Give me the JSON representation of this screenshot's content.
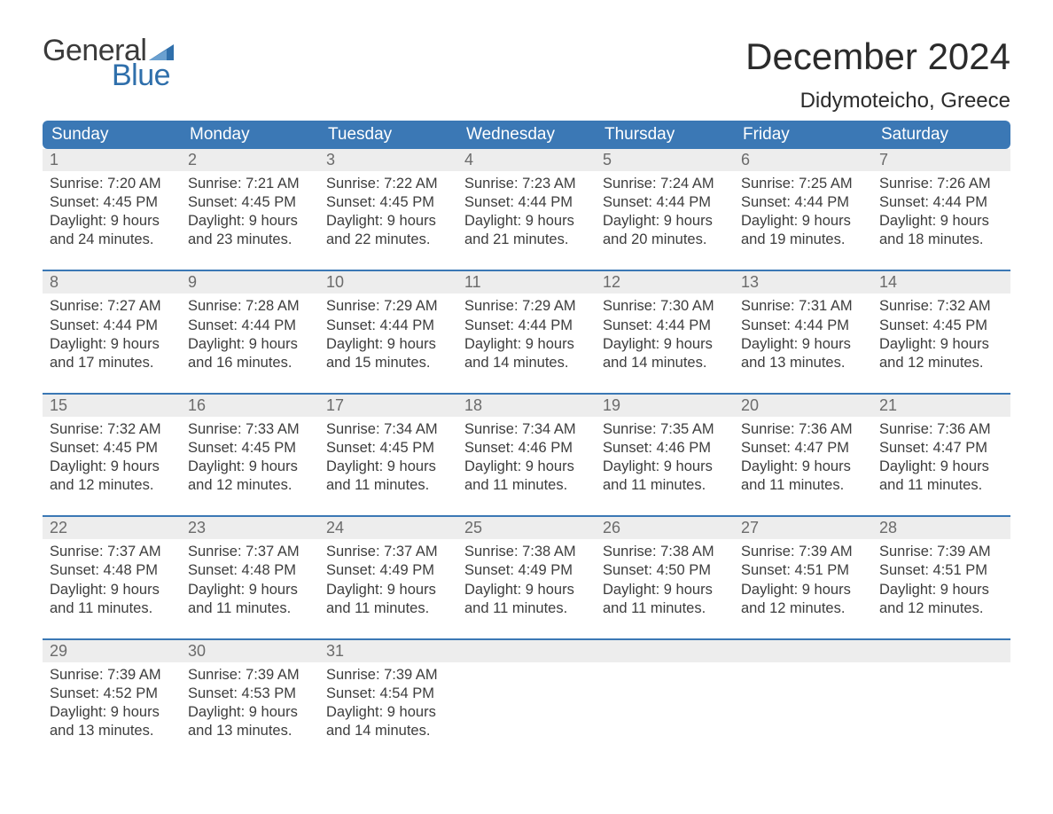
{
  "brand": {
    "word1": "General",
    "word2": "Blue",
    "text_color": "#3a3a3a",
    "accent_color": "#2f6fab"
  },
  "title": "December 2024",
  "location": "Didymoteicho, Greece",
  "colors": {
    "header_bg": "#3b78b5",
    "header_text": "#ffffff",
    "daynum_bg": "#ededed",
    "daynum_text": "#6b6b6b",
    "body_text": "#3d3d3d",
    "week_separator": "#3b78b5",
    "page_bg": "#ffffff"
  },
  "typography": {
    "title_fontsize": 42,
    "location_fontsize": 24,
    "header_fontsize": 19,
    "daynum_fontsize": 18,
    "cell_fontsize": 16.5,
    "font_family": "Arial"
  },
  "day_headers": [
    "Sunday",
    "Monday",
    "Tuesday",
    "Wednesday",
    "Thursday",
    "Friday",
    "Saturday"
  ],
  "weeks": [
    [
      {
        "n": "1",
        "l1": "Sunrise: 7:20 AM",
        "l2": "Sunset: 4:45 PM",
        "l3": "Daylight: 9 hours",
        "l4": "and 24 minutes."
      },
      {
        "n": "2",
        "l1": "Sunrise: 7:21 AM",
        "l2": "Sunset: 4:45 PM",
        "l3": "Daylight: 9 hours",
        "l4": "and 23 minutes."
      },
      {
        "n": "3",
        "l1": "Sunrise: 7:22 AM",
        "l2": "Sunset: 4:45 PM",
        "l3": "Daylight: 9 hours",
        "l4": "and 22 minutes."
      },
      {
        "n": "4",
        "l1": "Sunrise: 7:23 AM",
        "l2": "Sunset: 4:44 PM",
        "l3": "Daylight: 9 hours",
        "l4": "and 21 minutes."
      },
      {
        "n": "5",
        "l1": "Sunrise: 7:24 AM",
        "l2": "Sunset: 4:44 PM",
        "l3": "Daylight: 9 hours",
        "l4": "and 20 minutes."
      },
      {
        "n": "6",
        "l1": "Sunrise: 7:25 AM",
        "l2": "Sunset: 4:44 PM",
        "l3": "Daylight: 9 hours",
        "l4": "and 19 minutes."
      },
      {
        "n": "7",
        "l1": "Sunrise: 7:26 AM",
        "l2": "Sunset: 4:44 PM",
        "l3": "Daylight: 9 hours",
        "l4": "and 18 minutes."
      }
    ],
    [
      {
        "n": "8",
        "l1": "Sunrise: 7:27 AM",
        "l2": "Sunset: 4:44 PM",
        "l3": "Daylight: 9 hours",
        "l4": "and 17 minutes."
      },
      {
        "n": "9",
        "l1": "Sunrise: 7:28 AM",
        "l2": "Sunset: 4:44 PM",
        "l3": "Daylight: 9 hours",
        "l4": "and 16 minutes."
      },
      {
        "n": "10",
        "l1": "Sunrise: 7:29 AM",
        "l2": "Sunset: 4:44 PM",
        "l3": "Daylight: 9 hours",
        "l4": "and 15 minutes."
      },
      {
        "n": "11",
        "l1": "Sunrise: 7:29 AM",
        "l2": "Sunset: 4:44 PM",
        "l3": "Daylight: 9 hours",
        "l4": "and 14 minutes."
      },
      {
        "n": "12",
        "l1": "Sunrise: 7:30 AM",
        "l2": "Sunset: 4:44 PM",
        "l3": "Daylight: 9 hours",
        "l4": "and 14 minutes."
      },
      {
        "n": "13",
        "l1": "Sunrise: 7:31 AM",
        "l2": "Sunset: 4:44 PM",
        "l3": "Daylight: 9 hours",
        "l4": "and 13 minutes."
      },
      {
        "n": "14",
        "l1": "Sunrise: 7:32 AM",
        "l2": "Sunset: 4:45 PM",
        "l3": "Daylight: 9 hours",
        "l4": "and 12 minutes."
      }
    ],
    [
      {
        "n": "15",
        "l1": "Sunrise: 7:32 AM",
        "l2": "Sunset: 4:45 PM",
        "l3": "Daylight: 9 hours",
        "l4": "and 12 minutes."
      },
      {
        "n": "16",
        "l1": "Sunrise: 7:33 AM",
        "l2": "Sunset: 4:45 PM",
        "l3": "Daylight: 9 hours",
        "l4": "and 12 minutes."
      },
      {
        "n": "17",
        "l1": "Sunrise: 7:34 AM",
        "l2": "Sunset: 4:45 PM",
        "l3": "Daylight: 9 hours",
        "l4": "and 11 minutes."
      },
      {
        "n": "18",
        "l1": "Sunrise: 7:34 AM",
        "l2": "Sunset: 4:46 PM",
        "l3": "Daylight: 9 hours",
        "l4": "and 11 minutes."
      },
      {
        "n": "19",
        "l1": "Sunrise: 7:35 AM",
        "l2": "Sunset: 4:46 PM",
        "l3": "Daylight: 9 hours",
        "l4": "and 11 minutes."
      },
      {
        "n": "20",
        "l1": "Sunrise: 7:36 AM",
        "l2": "Sunset: 4:47 PM",
        "l3": "Daylight: 9 hours",
        "l4": "and 11 minutes."
      },
      {
        "n": "21",
        "l1": "Sunrise: 7:36 AM",
        "l2": "Sunset: 4:47 PM",
        "l3": "Daylight: 9 hours",
        "l4": "and 11 minutes."
      }
    ],
    [
      {
        "n": "22",
        "l1": "Sunrise: 7:37 AM",
        "l2": "Sunset: 4:48 PM",
        "l3": "Daylight: 9 hours",
        "l4": "and 11 minutes."
      },
      {
        "n": "23",
        "l1": "Sunrise: 7:37 AM",
        "l2": "Sunset: 4:48 PM",
        "l3": "Daylight: 9 hours",
        "l4": "and 11 minutes."
      },
      {
        "n": "24",
        "l1": "Sunrise: 7:37 AM",
        "l2": "Sunset: 4:49 PM",
        "l3": "Daylight: 9 hours",
        "l4": "and 11 minutes."
      },
      {
        "n": "25",
        "l1": "Sunrise: 7:38 AM",
        "l2": "Sunset: 4:49 PM",
        "l3": "Daylight: 9 hours",
        "l4": "and 11 minutes."
      },
      {
        "n": "26",
        "l1": "Sunrise: 7:38 AM",
        "l2": "Sunset: 4:50 PM",
        "l3": "Daylight: 9 hours",
        "l4": "and 11 minutes."
      },
      {
        "n": "27",
        "l1": "Sunrise: 7:39 AM",
        "l2": "Sunset: 4:51 PM",
        "l3": "Daylight: 9 hours",
        "l4": "and 12 minutes."
      },
      {
        "n": "28",
        "l1": "Sunrise: 7:39 AM",
        "l2": "Sunset: 4:51 PM",
        "l3": "Daylight: 9 hours",
        "l4": "and 12 minutes."
      }
    ],
    [
      {
        "n": "29",
        "l1": "Sunrise: 7:39 AM",
        "l2": "Sunset: 4:52 PM",
        "l3": "Daylight: 9 hours",
        "l4": "and 13 minutes."
      },
      {
        "n": "30",
        "l1": "Sunrise: 7:39 AM",
        "l2": "Sunset: 4:53 PM",
        "l3": "Daylight: 9 hours",
        "l4": "and 13 minutes."
      },
      {
        "n": "31",
        "l1": "Sunrise: 7:39 AM",
        "l2": "Sunset: 4:54 PM",
        "l3": "Daylight: 9 hours",
        "l4": "and 14 minutes."
      },
      null,
      null,
      null,
      null
    ]
  ]
}
